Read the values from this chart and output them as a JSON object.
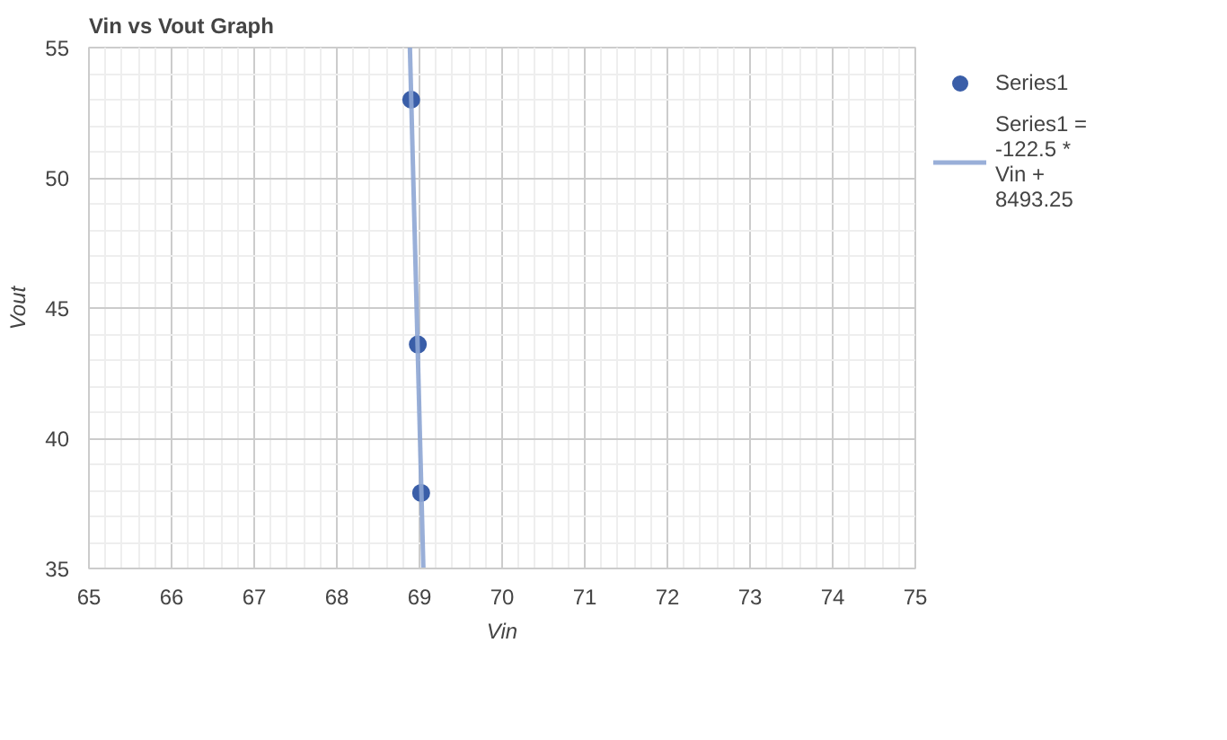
{
  "chart_data": {
    "type": "scatter",
    "title": "Vin vs Vout Graph",
    "xlabel": "Vin",
    "ylabel": "Vout",
    "xlim": [
      65,
      75
    ],
    "xticks": [
      65,
      66,
      67,
      68,
      69,
      70,
      71,
      72,
      73,
      74,
      75
    ],
    "ylim": [
      35,
      55
    ],
    "yticks": [
      35,
      40,
      45,
      50,
      55
    ],
    "grid": true,
    "legend": "right",
    "marker": "circle",
    "series": [
      {
        "name": "Series1",
        "color": "#3a5ea8",
        "x": [
          68.9,
          68.98,
          69.02
        ],
        "values": [
          53,
          43.6,
          37.9
        ]
      },
      {
        "name": "Series1 = -122.5 * Vin + 8493.25",
        "type": "line",
        "color": "#8ea6d4",
        "marker": "none",
        "x": [
          68.884,
          69.047
        ],
        "values": [
          55,
          35
        ]
      }
    ]
  }
}
